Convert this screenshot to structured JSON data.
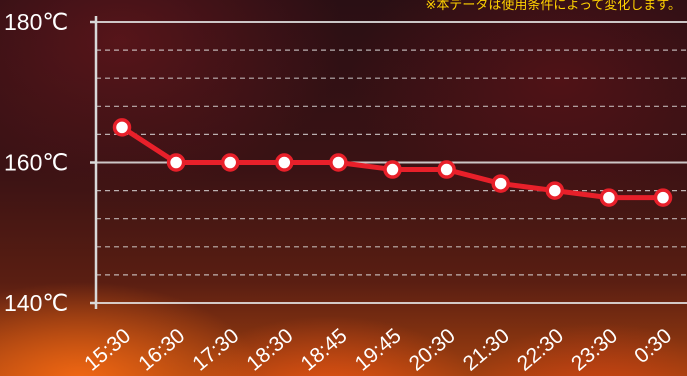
{
  "note": "※本データは使用条件によって変化します。",
  "colors": {
    "line": "#e8202a",
    "marker_fill": "#ffffff",
    "grid": "#e6e6e6",
    "axis": "#d9d9d9",
    "text": "#ffffff",
    "note": "#ffd200"
  },
  "chart_data": {
    "type": "line",
    "title": "",
    "xlabel": "",
    "ylabel": "",
    "ylim": [
      140,
      180
    ],
    "yticks": [
      "140℃",
      "160℃",
      "180℃"
    ],
    "categories": [
      "15:30",
      "16:30",
      "17:30",
      "18:30",
      "18:45",
      "19:45",
      "20:30",
      "21:30",
      "22:30",
      "23:30",
      "0:30"
    ],
    "series": [
      {
        "values": [
          165,
          160,
          160,
          160,
          160,
          159,
          159,
          157,
          156,
          155,
          155
        ]
      }
    ],
    "grid": true,
    "minor_grid_dashed": true
  }
}
